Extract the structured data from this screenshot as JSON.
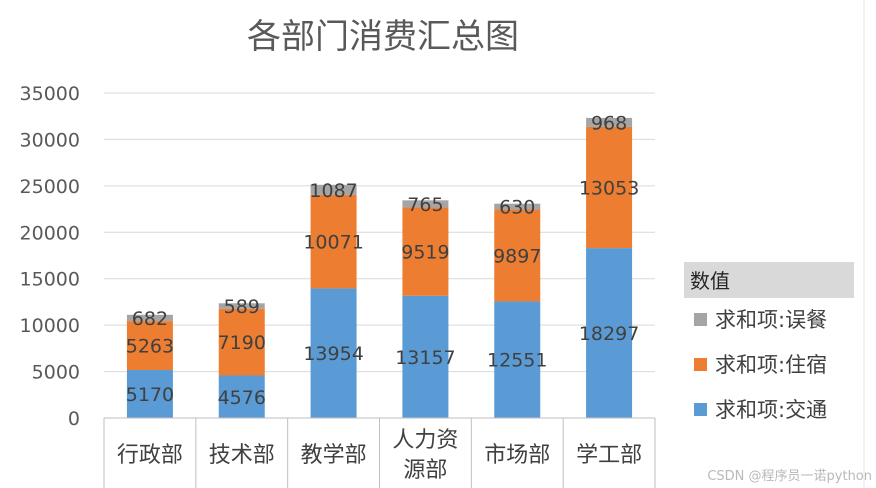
{
  "chart_data": {
    "type": "bar",
    "stacked": true,
    "title": "各部门消费汇总图",
    "categories": [
      "行政部",
      "技术部",
      "教学部",
      "人力资源部",
      "市场部",
      "学工部"
    ],
    "series": [
      {
        "name": "求和项:交通",
        "color": "#5b9bd5",
        "values": [
          5170,
          4576,
          13954,
          13157,
          12551,
          18297
        ]
      },
      {
        "name": "求和项:住宿",
        "color": "#ed7d31",
        "values": [
          5263,
          7190,
          10071,
          9519,
          9897,
          13053
        ]
      },
      {
        "name": "求和项:误餐",
        "color": "#a5a5a5",
        "values": [
          682,
          589,
          1087,
          765,
          630,
          968
        ]
      }
    ],
    "ylim": [
      0,
      35000
    ],
    "yticks": [
      "0",
      "5000",
      "10000",
      "15000",
      "20000",
      "25000",
      "30000",
      "35000"
    ],
    "grid": true,
    "legend_title": "数值",
    "legend_position": "right",
    "data_labels": true
  },
  "watermark": "CSDN @程序员一诺python"
}
